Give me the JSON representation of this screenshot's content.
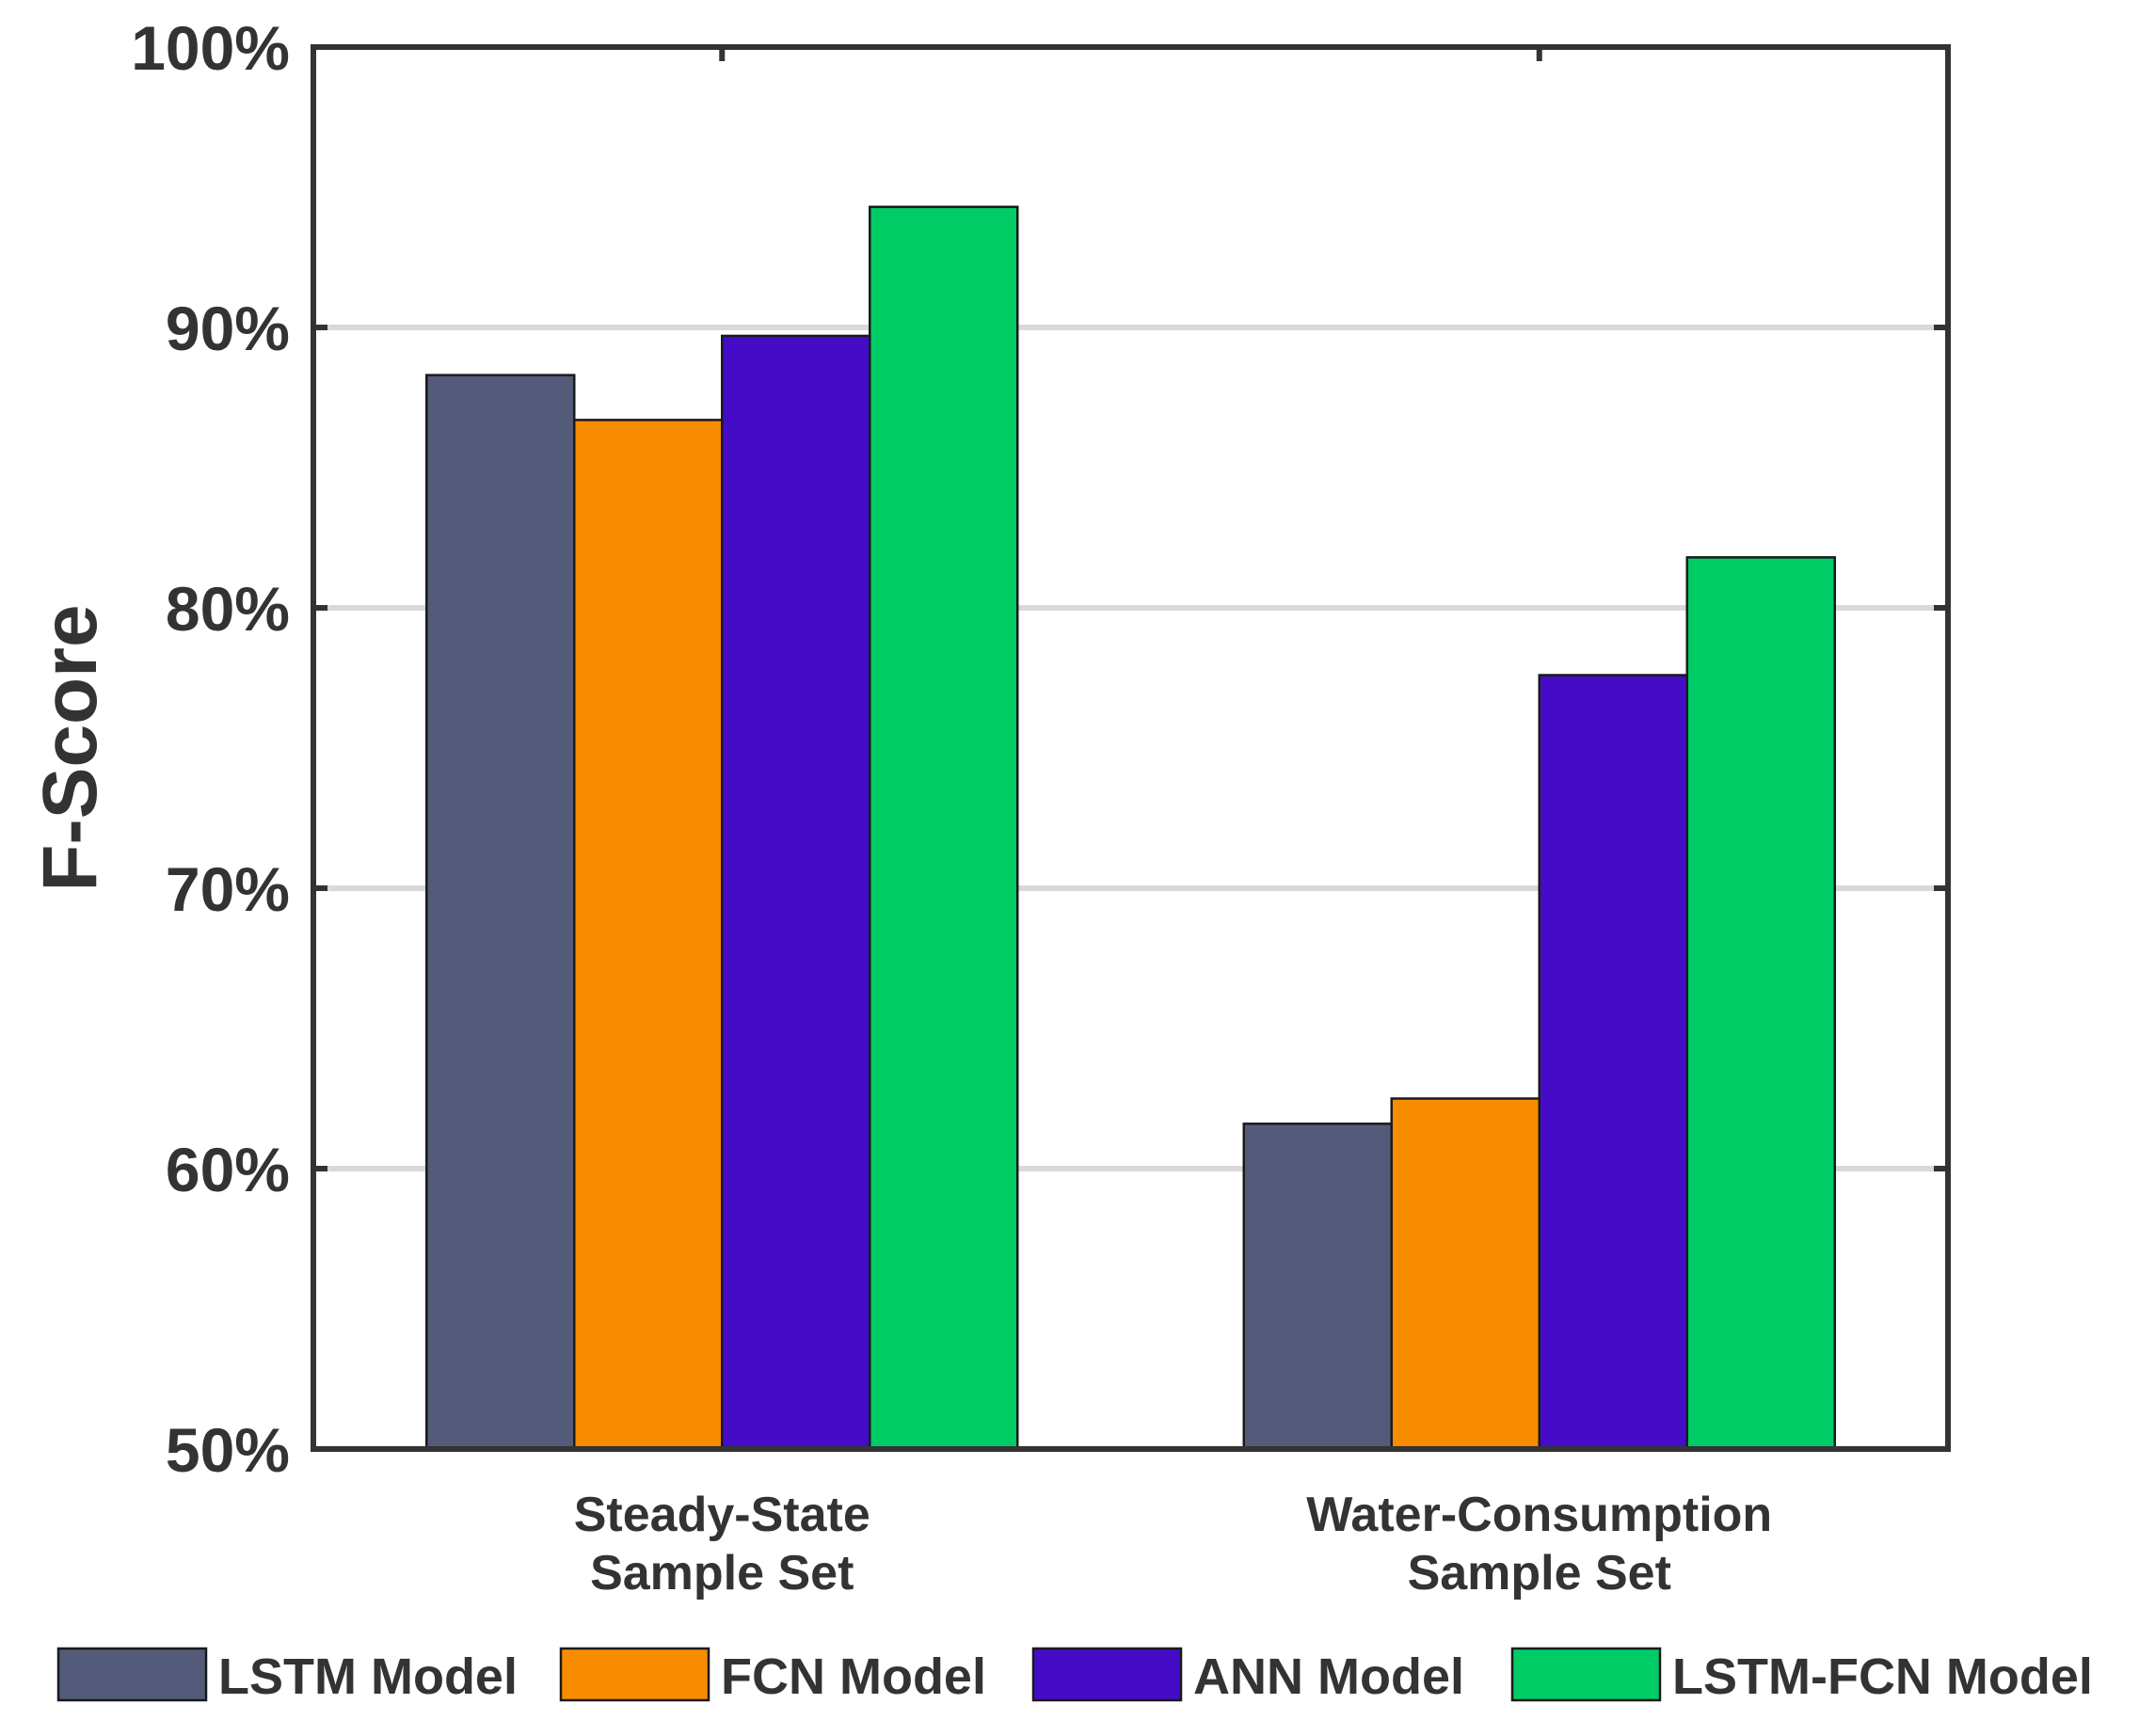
{
  "chart_data": {
    "type": "bar",
    "title": "",
    "xlabel": "",
    "ylabel": "F-Score",
    "ylim": [
      50,
      100
    ],
    "yticks": [
      50,
      60,
      70,
      80,
      90,
      100
    ],
    "ytick_suffix": "%",
    "grid": true,
    "legend_position": "bottom",
    "categories": [
      [
        "Steady-State",
        "Sample Set"
      ],
      [
        "Water-Consumption",
        "Sample Set"
      ]
    ],
    "series": [
      {
        "name": "LSTM Model",
        "color": "#535a7a",
        "values": [
          88.3,
          61.6
        ]
      },
      {
        "name": "FCN Model",
        "color": "#f78c00",
        "values": [
          86.7,
          62.5
        ]
      },
      {
        "name": "ANN Model",
        "color": "#450cc8",
        "values": [
          89.7,
          77.6
        ]
      },
      {
        "name": "LSTM-FCN Model",
        "color": "#00cc66",
        "values": [
          94.3,
          81.8
        ]
      }
    ]
  }
}
